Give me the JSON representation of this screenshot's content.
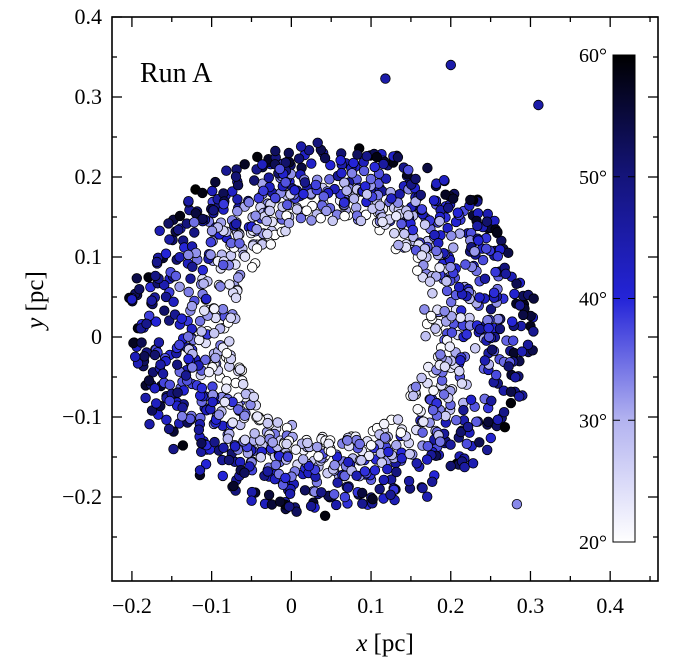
{
  "chart_data": {
    "type": "scatter",
    "title": "",
    "annotation": "Run A",
    "xlabel": {
      "symbol": "x",
      "unit": "[pc]"
    },
    "ylabel": {
      "symbol": "y",
      "unit": "[pc]"
    },
    "xlim": [
      -0.225,
      0.46
    ],
    "ylim": [
      -0.305,
      0.4
    ],
    "xticks": [
      -0.2,
      -0.1,
      0,
      0.1,
      0.2,
      0.3,
      0.4
    ],
    "xtick_labels": [
      "−0.2",
      "−0.1",
      "0",
      "0.1",
      "0.2",
      "0.3",
      "0.4"
    ],
    "yticks": [
      -0.2,
      -0.1,
      0,
      0.1,
      0.2,
      0.3,
      0.4
    ],
    "ytick_labels": [
      "−0.2",
      "−0.1",
      "0",
      "0.1",
      "0.2",
      "0.3",
      "0.4"
    ],
    "grid": false,
    "colorbar": {
      "label_unit": "degrees",
      "range": [
        20,
        60
      ],
      "ticks": [
        20,
        30,
        40,
        50,
        60
      ],
      "tick_labels": [
        "20°",
        "30°",
        "40°",
        "50°",
        "60°"
      ],
      "colors": [
        "#ffffff",
        "#b3b3f0",
        "#2424d8",
        "#14147a",
        "#000000"
      ]
    },
    "marker_edge_color": "#000000",
    "ring": {
      "center": [
        0.05,
        0.01
      ],
      "inner_radius_x": 0.12,
      "inner_radius_y": 0.135,
      "outer_radius_x": 0.255,
      "outer_radius_y": 0.23,
      "n_points": 1300,
      "color_value_range": [
        20,
        60
      ]
    },
    "outliers": [
      {
        "x": -0.2,
        "y": 0.047,
        "c": 42
      },
      {
        "x": -0.178,
        "y": -0.109,
        "c": 45
      },
      {
        "x": 0.118,
        "y": 0.323,
        "c": 45
      },
      {
        "x": 0.2,
        "y": 0.34,
        "c": 45
      },
      {
        "x": 0.31,
        "y": 0.29,
        "c": 45
      },
      {
        "x": 0.283,
        "y": -0.209,
        "c": 33
      }
    ]
  }
}
